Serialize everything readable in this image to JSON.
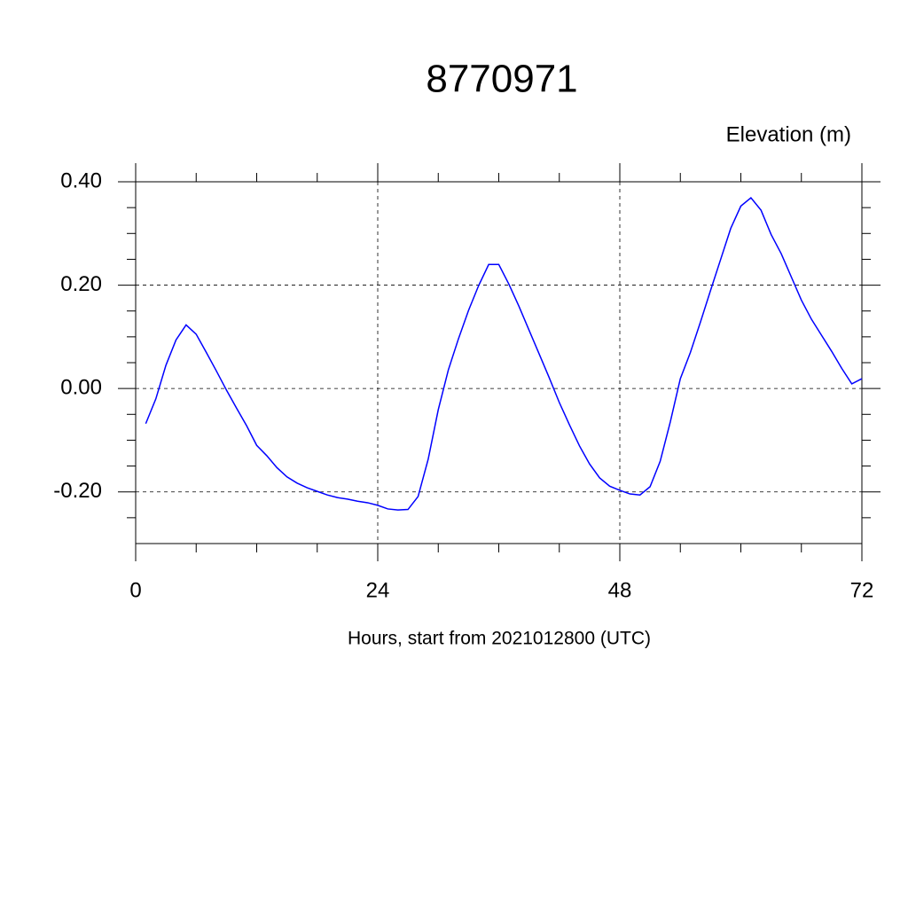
{
  "chart_data": {
    "type": "line",
    "title": "8770971",
    "subtitle": "Elevation (m)",
    "x_label": "Hours, start from 2021012800 (UTC)",
    "x": [
      1,
      2,
      3,
      4,
      5,
      6,
      7,
      8,
      9,
      10,
      11,
      12,
      13,
      14,
      15,
      16,
      17,
      18,
      19,
      20,
      21,
      22,
      23,
      24,
      25,
      26,
      27,
      28,
      29,
      30,
      31,
      32,
      33,
      34,
      35,
      36,
      37,
      38,
      39,
      40,
      41,
      42,
      43,
      44,
      45,
      46,
      47,
      48,
      49,
      50,
      51,
      52,
      53,
      54,
      55,
      56,
      57,
      58,
      59,
      60,
      61,
      62,
      63,
      64,
      65,
      66,
      67,
      68,
      69,
      70,
      71,
      72
    ],
    "series": [
      {
        "color": "#0000ff",
        "values": [
          -0.068,
          -0.02,
          0.045,
          0.094,
          0.123,
          0.105,
          0.07,
          0.034,
          -0.003,
          -0.038,
          -0.072,
          -0.11,
          -0.13,
          -0.153,
          -0.171,
          -0.183,
          -0.192,
          -0.199,
          -0.206,
          -0.211,
          -0.214,
          -0.218,
          -0.221,
          -0.226,
          -0.233,
          -0.235,
          -0.234,
          -0.209,
          -0.137,
          -0.041,
          0.036,
          0.096,
          0.151,
          0.199,
          0.24,
          0.24,
          0.202,
          0.159,
          0.113,
          0.067,
          0.021,
          -0.027,
          -0.07,
          -0.111,
          -0.146,
          -0.173,
          -0.189,
          -0.197,
          -0.204,
          -0.206,
          -0.19,
          -0.141,
          -0.065,
          0.019,
          0.07,
          0.129,
          0.19,
          0.25,
          0.31,
          0.353,
          0.369,
          0.345,
          0.298,
          0.261,
          0.216,
          0.171,
          0.134,
          0.103,
          0.072,
          0.039,
          0.009,
          0.019
        ]
      }
    ],
    "xlim": [
      0,
      72
    ],
    "ylim": [
      -0.3,
      0.4
    ],
    "xticks": [
      0,
      24,
      48,
      72
    ],
    "yticks": [
      {
        "value": 0.4,
        "label": "0.40"
      },
      {
        "value": 0.2,
        "label": "0.20"
      },
      {
        "value": 0,
        "label": "0.00"
      },
      {
        "value": -0.2,
        "label": "-0.20"
      }
    ],
    "xminorticks": [
      6,
      12,
      18,
      30,
      36,
      42,
      54,
      60,
      66
    ],
    "yminorticks": [
      -0.25,
      -0.15,
      -0.1,
      -0.05,
      0.05,
      0.1,
      0.15,
      0.25,
      0.3,
      0.35
    ],
    "grid": true
  }
}
